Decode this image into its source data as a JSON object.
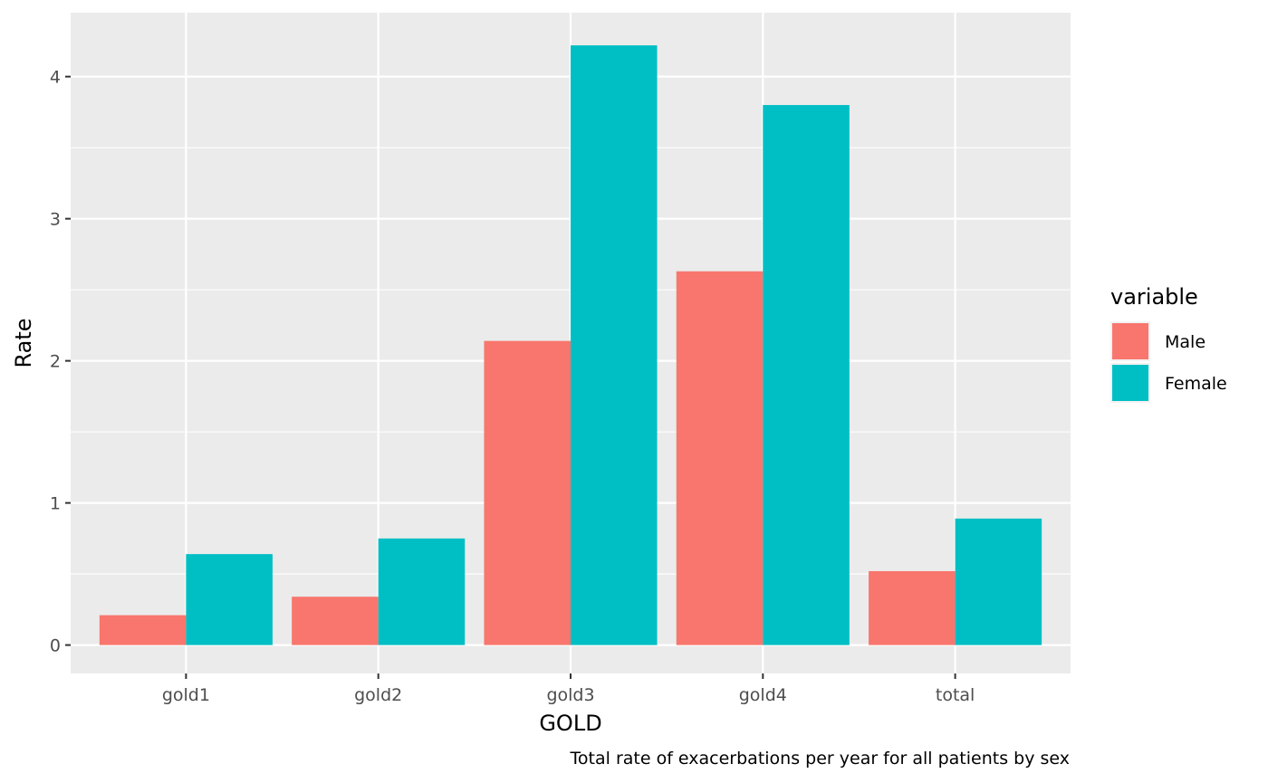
{
  "chart_data": {
    "type": "bar",
    "categories": [
      "gold1",
      "gold2",
      "gold3",
      "gold4",
      "total"
    ],
    "series": [
      {
        "name": "Male",
        "values": [
          0.21,
          0.34,
          2.14,
          2.63,
          0.52
        ],
        "color": "#F8766D"
      },
      {
        "name": "Female",
        "values": [
          0.64,
          0.75,
          4.22,
          3.8,
          0.89
        ],
        "color": "#00BFC4"
      }
    ],
    "xlabel": "GOLD",
    "ylabel": "Rate",
    "ylim": [
      -0.2,
      4.45
    ],
    "yticks": [
      0,
      1,
      2,
      3,
      4
    ],
    "legend": {
      "title": "variable",
      "position": "right"
    },
    "caption": "Total rate of exacerbations per year for all patients by sex",
    "grid": true,
    "panel_background": "#EBEBEB",
    "grid_color": "#FFFFFF"
  }
}
